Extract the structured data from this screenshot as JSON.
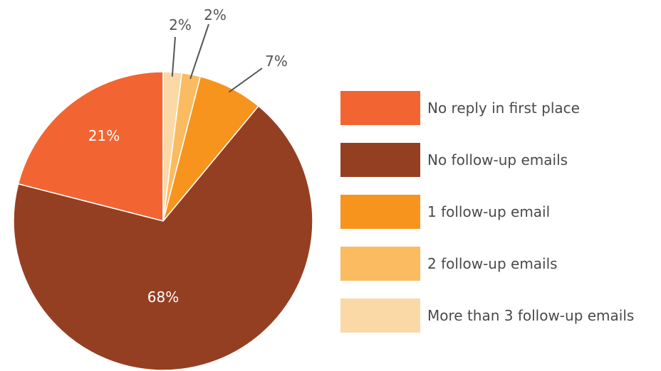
{
  "chart_data": {
    "type": "pie",
    "series": [
      {
        "name": "No reply in first place",
        "value": 21,
        "label": "21%",
        "color": "#F26532"
      },
      {
        "name": "No follow-up emails",
        "value": 68,
        "label": "68%",
        "color": "#953F22"
      },
      {
        "name": "1 follow-up email",
        "value": 7,
        "label": "7%",
        "color": "#F7941E"
      },
      {
        "name": "2 follow-up emails",
        "value": 2,
        "label": "2%",
        "color": "#FABB61"
      },
      {
        "name": "More than 3 follow-up emails",
        "value": 2,
        "label": "2%",
        "color": "#FBD9A6"
      }
    ],
    "legend_position": "right"
  }
}
